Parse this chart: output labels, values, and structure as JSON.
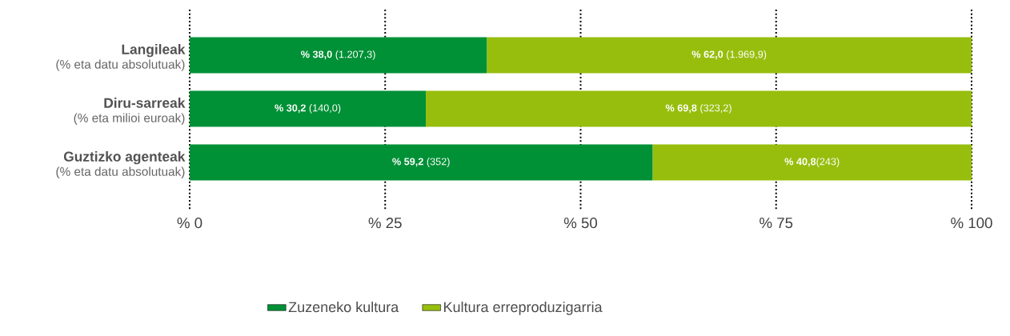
{
  "chart_data": {
    "type": "bar",
    "orientation": "horizontal",
    "stacked": true,
    "categories": [
      "Langileak",
      "Diru-sarreak",
      "Guztizko agenteak"
    ],
    "annotations": [
      "(% eta datu absolutuak)",
      "(% eta milioi euroak)",
      "(% eta datu absolutuak)"
    ],
    "series": [
      {
        "name": "Zuzeneko kultura",
        "color": "#009036",
        "values": [
          38.0,
          30.2,
          59.2
        ],
        "value_labels": [
          "**% 38,0**   (1.207,3)",
          "**% 30,2** (140,0)",
          "**% 59,2** (352)"
        ]
      },
      {
        "name": "Kultura erreproduzigarria",
        "color": "#97be0d",
        "values": [
          62.0,
          69.8,
          40.8
        ],
        "value_labels": [
          "**% 62,0** (1.969,9)",
          "**% 69,8** (323,2)",
          "**% 40,8**(243)"
        ]
      }
    ],
    "xlim": [
      0,
      100
    ],
    "xticks": [
      {
        "value": 0,
        "label": "% 0"
      },
      {
        "value": 25,
        "label": "% 25"
      },
      {
        "value": 50,
        "label": "% 50"
      },
      {
        "value": 75,
        "label": "% 75"
      },
      {
        "value": 100,
        "label": "% 100"
      }
    ],
    "grid": "x",
    "legend": "bottom"
  }
}
